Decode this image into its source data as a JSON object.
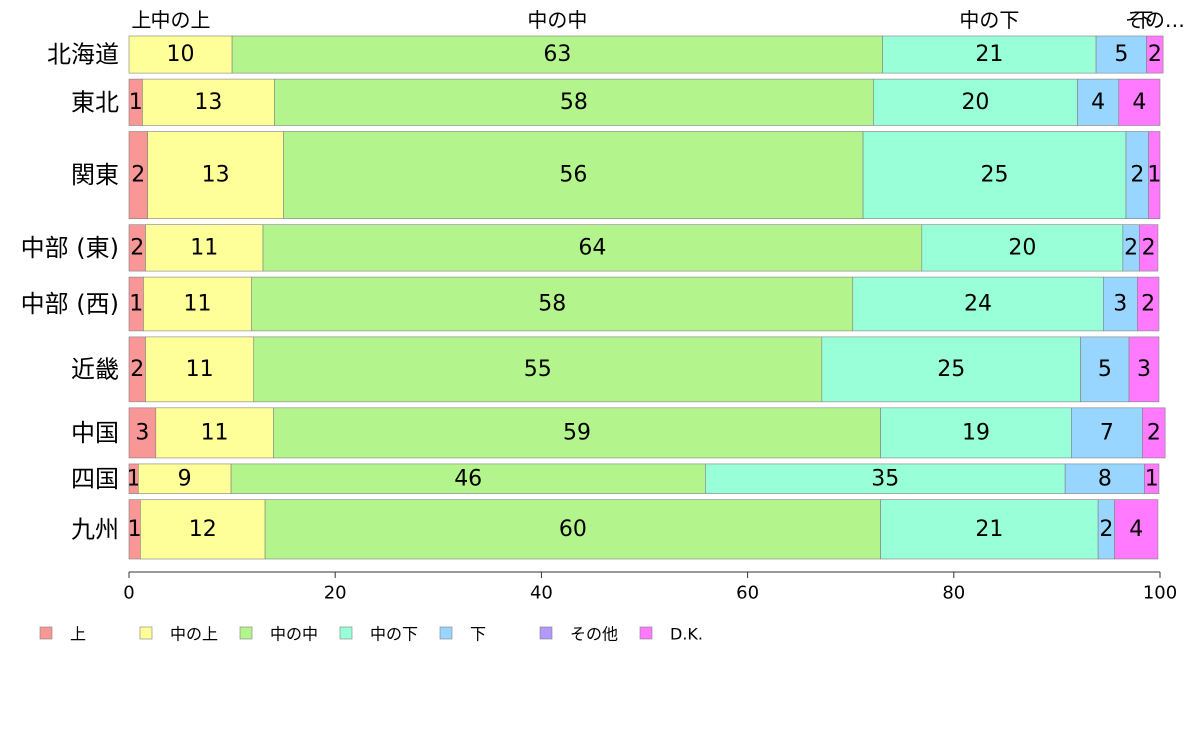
{
  "chart_data": {
    "type": "bar",
    "orientation": "horizontal",
    "stacked": true,
    "xlim": [
      0,
      100
    ],
    "x_ticks": [
      "0",
      "20",
      "40",
      "60",
      "80",
      "100"
    ],
    "categories": [
      "北海道",
      "東北",
      "関東",
      "中部 (東)",
      "中部 (西)",
      "近畿",
      "中国",
      "四国",
      "九州"
    ],
    "bar_weights": [
      1.0,
      1.25,
      2.35,
      1.25,
      1.45,
      1.75,
      1.35,
      0.8,
      1.6
    ],
    "top_segment_labels": [
      "上",
      "中の上",
      "中の中",
      "中の下",
      "下",
      "その…"
    ],
    "series": [
      {
        "name": "上",
        "color": "#f99696",
        "values": [
          0,
          1.3,
          1.8,
          1.6,
          1.4,
          1.6,
          2.6,
          0.9,
          1.1
        ],
        "labels": [
          "",
          "1",
          "2",
          "2",
          "1",
          "2",
          "3",
          "1",
          "1"
        ]
      },
      {
        "name": "中の上",
        "color": "#ffff99",
        "values": [
          10,
          12.8,
          13.2,
          11.4,
          10.5,
          10.5,
          11.4,
          9.0,
          12.1
        ],
        "labels": [
          "10",
          "13",
          "13",
          "11",
          "11",
          "11",
          "11",
          "9",
          "12"
        ]
      },
      {
        "name": "中の中",
        "color": "#b3f58c",
        "values": [
          63.1,
          58.1,
          56.2,
          63.9,
          58.3,
          55.1,
          58.9,
          46.0,
          59.7
        ],
        "labels": [
          "63",
          "58",
          "56",
          "64",
          "58",
          "55",
          "59",
          "46",
          "60"
        ]
      },
      {
        "name": "中の下",
        "color": "#99ffd9",
        "values": [
          20.7,
          19.8,
          25.5,
          19.5,
          24.3,
          25.1,
          18.5,
          34.9,
          21.1
        ],
        "labels": [
          "21",
          "20",
          "25",
          "20",
          "24",
          "25",
          "19",
          "35",
          "21"
        ]
      },
      {
        "name": "下",
        "color": "#99d6ff",
        "values": [
          4.9,
          4.0,
          2.2,
          1.6,
          3.3,
          4.7,
          6.9,
          7.7,
          1.6
        ],
        "labels": [
          "5",
          "4",
          "2",
          "2",
          "3",
          "5",
          "7",
          "8",
          "2"
        ]
      },
      {
        "name": "その他",
        "color": "#b399ff",
        "values": [
          0,
          0,
          0,
          0,
          0,
          0,
          0,
          0,
          0
        ],
        "labels": [
          "",
          "",
          "",
          "",
          "",
          "",
          "",
          "",
          ""
        ]
      },
      {
        "name": "D.K.",
        "color": "#ff7aff",
        "values": [
          1.6,
          4.0,
          1.1,
          1.8,
          2.1,
          2.9,
          2.2,
          1.4,
          4.2
        ],
        "labels": [
          "2",
          "4",
          "1",
          "2",
          "2",
          "3",
          "2",
          "1",
          "4"
        ]
      }
    ],
    "legend": {
      "placement": "bottom-left",
      "entries": [
        "上",
        "中の上",
        "中の中",
        "中の下",
        "下",
        "その他",
        "D.K."
      ]
    },
    "grid": false
  }
}
